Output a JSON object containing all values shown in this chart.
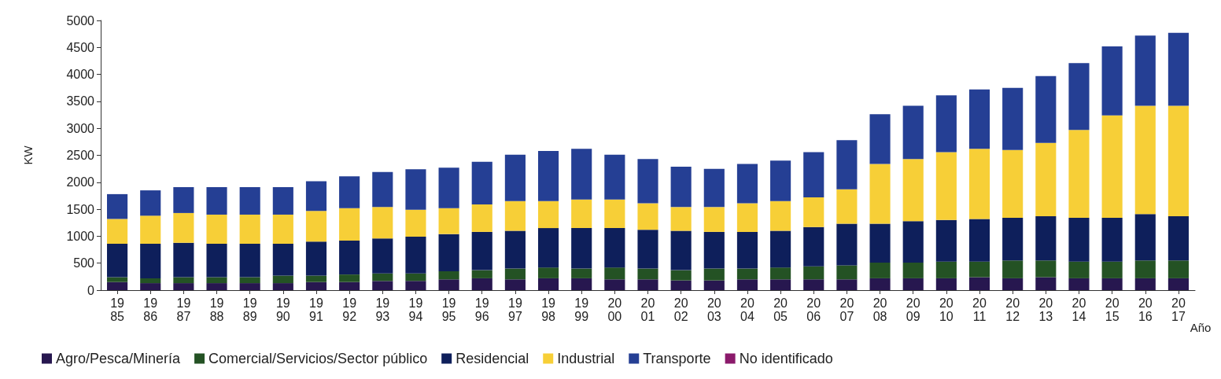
{
  "chart_data": {
    "type": "bar",
    "stacked": true,
    "ylabel": "KW",
    "xlabel": "Año",
    "categories": [
      "1985",
      "1986",
      "1987",
      "1988",
      "1989",
      "1990",
      "1991",
      "1992",
      "1993",
      "1994",
      "1995",
      "1996",
      "1997",
      "1998",
      "1999",
      "2000",
      "2001",
      "2002",
      "2003",
      "2004",
      "2005",
      "2006",
      "2007",
      "2008",
      "2009",
      "2010",
      "2011",
      "2012",
      "2013",
      "2014",
      "2015",
      "2016",
      "2017"
    ],
    "series": [
      {
        "name": "Agro/Pesca/Minería",
        "color": "#27174f",
        "values": [
          150,
          130,
          130,
          130,
          130,
          130,
          150,
          150,
          170,
          170,
          200,
          220,
          200,
          220,
          220,
          200,
          200,
          180,
          180,
          200,
          200,
          200,
          200,
          220,
          220,
          220,
          240,
          220,
          240,
          220,
          220,
          220,
          220
        ]
      },
      {
        "name": "Comercial/Servicios/Sector público",
        "color": "#245224",
        "values": [
          90,
          90,
          110,
          110,
          110,
          140,
          120,
          140,
          140,
          140,
          150,
          150,
          200,
          200,
          180,
          220,
          200,
          190,
          220,
          200,
          220,
          240,
          260,
          290,
          290,
          310,
          290,
          330,
          310,
          310,
          310,
          330,
          330
        ]
      },
      {
        "name": "Residencial",
        "color": "#0e1f5b",
        "values": [
          620,
          640,
          640,
          620,
          620,
          590,
          630,
          630,
          650,
          680,
          690,
          710,
          700,
          730,
          750,
          730,
          720,
          730,
          680,
          680,
          680,
          730,
          770,
          720,
          770,
          770,
          790,
          790,
          820,
          810,
          810,
          860,
          820
        ]
      },
      {
        "name": "Industrial",
        "color": "#f7cf37",
        "values": [
          460,
          520,
          550,
          540,
          540,
          540,
          570,
          600,
          580,
          500,
          480,
          510,
          550,
          500,
          530,
          530,
          490,
          440,
          460,
          530,
          550,
          550,
          640,
          1110,
          1150,
          1260,
          1300,
          1260,
          1360,
          1630,
          1900,
          2010,
          2050
        ]
      },
      {
        "name": "Transporte",
        "color": "#253f94",
        "values": [
          460,
          470,
          480,
          510,
          510,
          510,
          550,
          590,
          650,
          750,
          750,
          790,
          860,
          930,
          940,
          830,
          820,
          750,
          710,
          730,
          750,
          840,
          910,
          920,
          990,
          1050,
          1100,
          1150,
          1240,
          1240,
          1280,
          1300,
          1350
        ]
      },
      {
        "name": "No identificado",
        "color": "#8b1a6b",
        "values": [
          0,
          0,
          0,
          0,
          0,
          0,
          0,
          0,
          0,
          0,
          0,
          0,
          0,
          0,
          0,
          0,
          0,
          0,
          0,
          0,
          0,
          0,
          0,
          0,
          0,
          0,
          0,
          0,
          0,
          0,
          0,
          0,
          0
        ]
      }
    ],
    "ylim": [
      0,
      5000
    ],
    "yticks": [
      0,
      500,
      1000,
      1500,
      2000,
      2500,
      3000,
      3500,
      4000,
      4500,
      5000
    ],
    "grid": false,
    "legend": "bottom"
  }
}
